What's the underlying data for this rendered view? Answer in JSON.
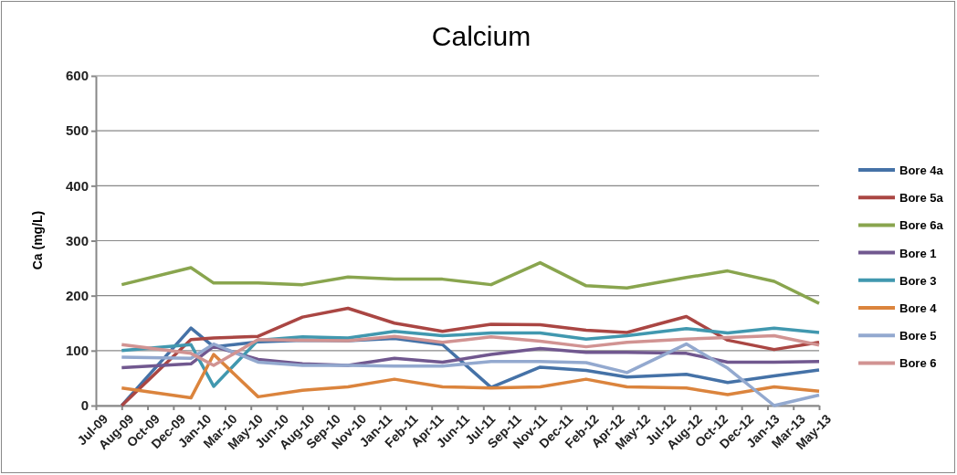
{
  "chart_data": {
    "type": "line",
    "title": "Calcium",
    "ylabel": "Ca (mg/L)",
    "x": [
      "2009-08-25",
      "2010-01-06",
      "2010-02-19",
      "2010-05-16",
      "2010-08-10",
      "2010-11-06",
      "2011-02-04",
      "2011-05-08",
      "2011-08-10",
      "2011-11-13",
      "2012-02-10",
      "2012-04-29",
      "2012-08-22",
      "2012-11-10",
      "2013-02-08",
      "2013-05-06"
    ],
    "series": [
      {
        "name": "Bore 4a",
        "color": "#4572a7",
        "values": [
          0,
          141,
          107,
          116,
          119,
          118,
          122,
          111,
          33,
          70,
          64,
          52,
          57,
          42,
          54,
          65
        ]
      },
      {
        "name": "Bore 5a",
        "color": "#aa4643",
        "values": [
          0,
          120,
          123,
          126,
          161,
          177,
          150,
          135,
          148,
          147,
          137,
          133,
          162,
          119,
          102,
          115
        ]
      },
      {
        "name": "Bore 6a",
        "color": "#89a54e",
        "values": [
          220,
          251,
          223,
          223,
          220,
          234,
          230,
          230,
          220,
          260,
          218,
          214,
          233,
          245,
          226,
          186
        ]
      },
      {
        "name": "Bore 1",
        "color": "#71588f",
        "values": [
          69,
          76,
          108,
          84,
          76,
          73,
          86,
          79,
          93,
          104,
          97,
          97,
          95,
          79,
          79,
          80
        ]
      },
      {
        "name": "Bore 3",
        "color": "#4198af",
        "values": [
          100,
          111,
          35,
          119,
          125,
          123,
          135,
          127,
          132,
          132,
          121,
          127,
          140,
          132,
          141,
          133
        ]
      },
      {
        "name": "Bore 4",
        "color": "#db843d",
        "values": [
          32,
          14,
          93,
          16,
          28,
          34,
          48,
          34,
          32,
          34,
          48,
          34,
          32,
          20,
          34,
          26
        ]
      },
      {
        "name": "Bore 5",
        "color": "#93a9cf",
        "values": [
          88,
          86,
          112,
          79,
          73,
          73,
          72,
          72,
          80,
          80,
          78,
          60,
          112,
          68,
          0,
          19
        ]
      },
      {
        "name": "Bore 6",
        "color": "#d19392",
        "values": [
          111,
          95,
          73,
          120,
          119,
          118,
          126,
          115,
          125,
          117,
          107,
          115,
          121,
          124,
          127,
          110
        ]
      }
    ],
    "xlim": [
      "2009-07-06",
      "2013-05-06"
    ],
    "xticks": [
      {
        "value": "2009-07-06",
        "label": "Jul-09"
      },
      {
        "value": "2009-08-25",
        "label": "Aug-09"
      },
      {
        "value": "2009-10-14",
        "label": "Oct-09"
      },
      {
        "value": "2009-12-03",
        "label": "Dec-09"
      },
      {
        "value": "2010-01-22",
        "label": "Jan-10"
      },
      {
        "value": "2010-03-13",
        "label": "Mar-10"
      },
      {
        "value": "2010-05-02",
        "label": "May-10"
      },
      {
        "value": "2010-06-21",
        "label": "Jun-10"
      },
      {
        "value": "2010-08-10",
        "label": "Aug-10"
      },
      {
        "value": "2010-09-29",
        "label": "Sep-10"
      },
      {
        "value": "2010-11-18",
        "label": "Nov-10"
      },
      {
        "value": "2011-01-07",
        "label": "Jan-11"
      },
      {
        "value": "2011-02-26",
        "label": "Feb-11"
      },
      {
        "value": "2011-04-17",
        "label": "Apr-11"
      },
      {
        "value": "2011-06-06",
        "label": "Jun-11"
      },
      {
        "value": "2011-07-26",
        "label": "Jul-11"
      },
      {
        "value": "2011-09-14",
        "label": "Sep-11"
      },
      {
        "value": "2011-11-03",
        "label": "Nov-11"
      },
      {
        "value": "2011-12-23",
        "label": "Dec-11"
      },
      {
        "value": "2012-02-11",
        "label": "Feb-12"
      },
      {
        "value": "2012-04-01",
        "label": "Apr-12"
      },
      {
        "value": "2012-05-21",
        "label": "May-12"
      },
      {
        "value": "2012-07-10",
        "label": "Jul-12"
      },
      {
        "value": "2012-08-29",
        "label": "Aug-12"
      },
      {
        "value": "2012-10-18",
        "label": "Oct-12"
      },
      {
        "value": "2012-12-07",
        "label": "Dec-12"
      },
      {
        "value": "2013-01-26",
        "label": "Jan-13"
      },
      {
        "value": "2013-03-17",
        "label": "Mar-13"
      },
      {
        "value": "2013-05-06",
        "label": "May-13"
      }
    ],
    "ylim": [
      0,
      600
    ],
    "yticks": [
      0,
      100,
      200,
      300,
      400,
      500,
      600
    ],
    "grid": "y",
    "legend": "right",
    "marker": "none",
    "line_style": "solid"
  }
}
